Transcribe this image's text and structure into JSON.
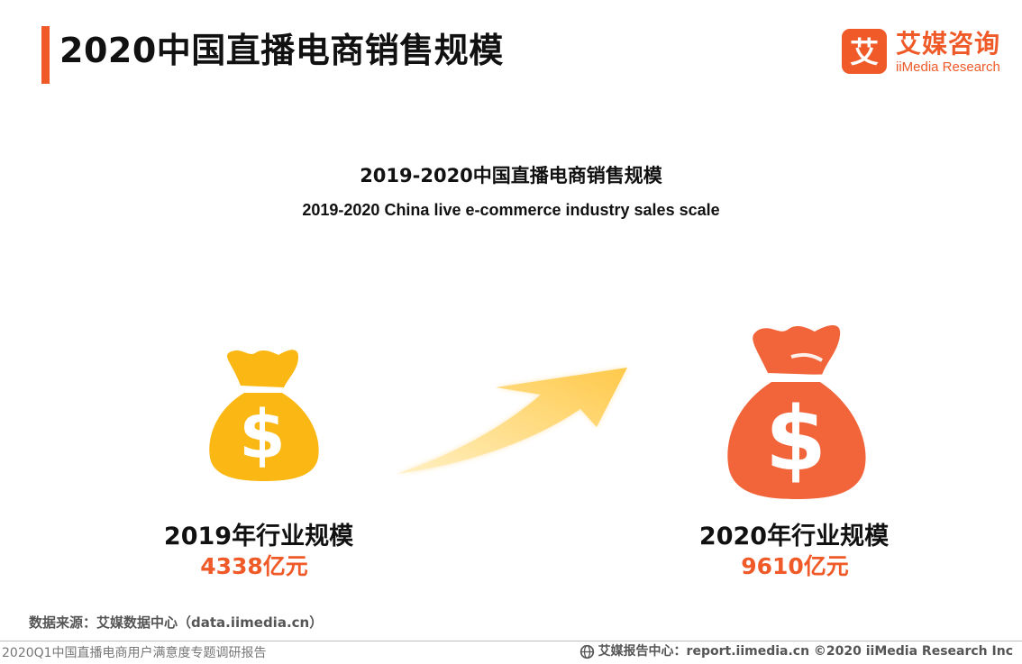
{
  "header": {
    "title": "2020中国直播电商销售规模"
  },
  "logo": {
    "mark": "艾",
    "name_cn": "艾媒咨询",
    "name_en": "iiMedia Research"
  },
  "chart": {
    "title": "2019-2020中国直播电商销售规模",
    "subtitle": "2019-2020 China live e-commerce  industry sales scale"
  },
  "chart_data": {
    "type": "other",
    "title": "2019-2020中国直播电商销售规模",
    "subtitle": "2019-2020 China live e-commerce  industry sales scale",
    "categories": [
      "2019年行业规模",
      "2020年行业规模"
    ],
    "values": [
      4338,
      9610
    ],
    "unit": "亿元",
    "value_labels": [
      "4338亿元",
      "9610亿元"
    ]
  },
  "items": [
    {
      "label": "2019年行业规模",
      "value": "4338亿元",
      "color": "#fbb814",
      "icon": "money-bag-icon"
    },
    {
      "label": "2020年行业规模",
      "value": "9610亿元",
      "color": "#f2643a",
      "icon": "money-bag-icon"
    }
  ],
  "arrow": {
    "icon": "growth-arrow-icon",
    "color": "#ffc94a"
  },
  "source": {
    "text": "数据来源：艾媒数据中心（data.iimedia.cn）"
  },
  "footer": {
    "left": "2020Q1中国直播电商用户满意度专题调研报告",
    "right": "艾媒报告中心：report.iimedia.cn   ©2020  iiMedia Research  Inc"
  },
  "colors": {
    "accent": "#ef5a28",
    "bag_2019": "#fbb814",
    "bag_2020": "#f2643a",
    "arrow": "#ffc94a"
  }
}
